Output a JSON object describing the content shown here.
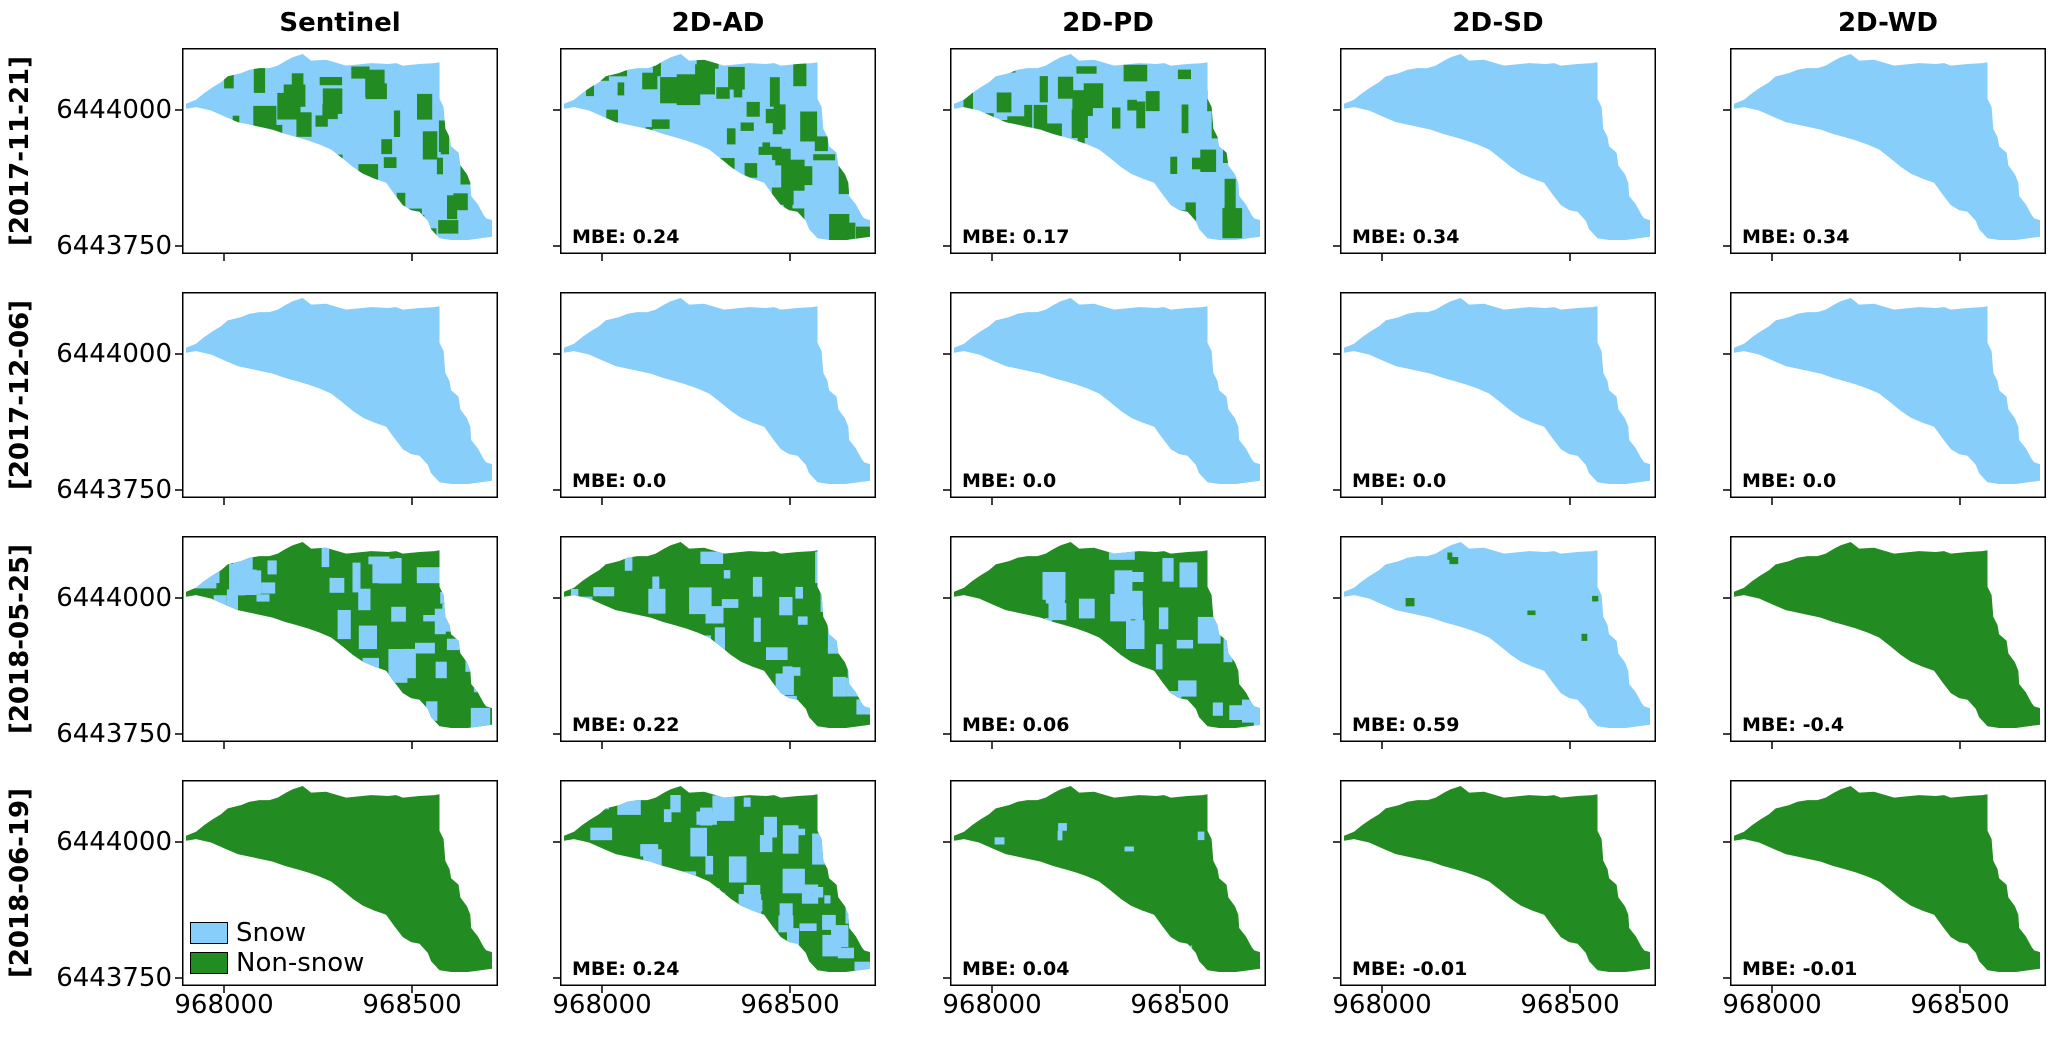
{
  "colors": {
    "snow": "#87cefa",
    "nonsnow": "#228b22"
  },
  "chart_data": {
    "type": "heatmap",
    "columns": [
      "Sentinel",
      "2D-AD",
      "2D-PD",
      "2D-SD",
      "2D-WD"
    ],
    "rows": [
      "[2017-11-21]",
      "[2017-12-06]",
      "[2018-05-25]",
      "[2018-06-19]"
    ],
    "ytick_labels": [
      "6444000",
      "6443750"
    ],
    "xtick_labels": [
      "968000",
      "968500"
    ],
    "legend": {
      "placement": "lower-left of bottom-left panel",
      "items": [
        "Snow",
        "Non-snow"
      ]
    },
    "mbe_labels": [
      [
        null,
        "MBE: 0.24",
        "MBE: 0.17",
        "MBE: 0.34",
        "MBE: 0.34"
      ],
      [
        null,
        "MBE: 0.0",
        "MBE: 0.0",
        "MBE: 0.0",
        "MBE: 0.0"
      ],
      [
        null,
        "MBE: 0.22",
        "MBE: 0.06",
        "MBE: 0.59",
        "MBE: -0.4"
      ],
      [
        null,
        "MBE: 0.24",
        "MBE: 0.04",
        "MBE: -0.01",
        "MBE: -0.01"
      ]
    ],
    "mbe_values": [
      [
        null,
        0.24,
        0.17,
        0.34,
        0.34
      ],
      [
        null,
        0.0,
        0.0,
        0.0,
        0.0
      ],
      [
        null,
        0.22,
        0.06,
        0.59,
        -0.4
      ],
      [
        null,
        0.24,
        0.04,
        -0.01,
        -0.01
      ]
    ]
  }
}
